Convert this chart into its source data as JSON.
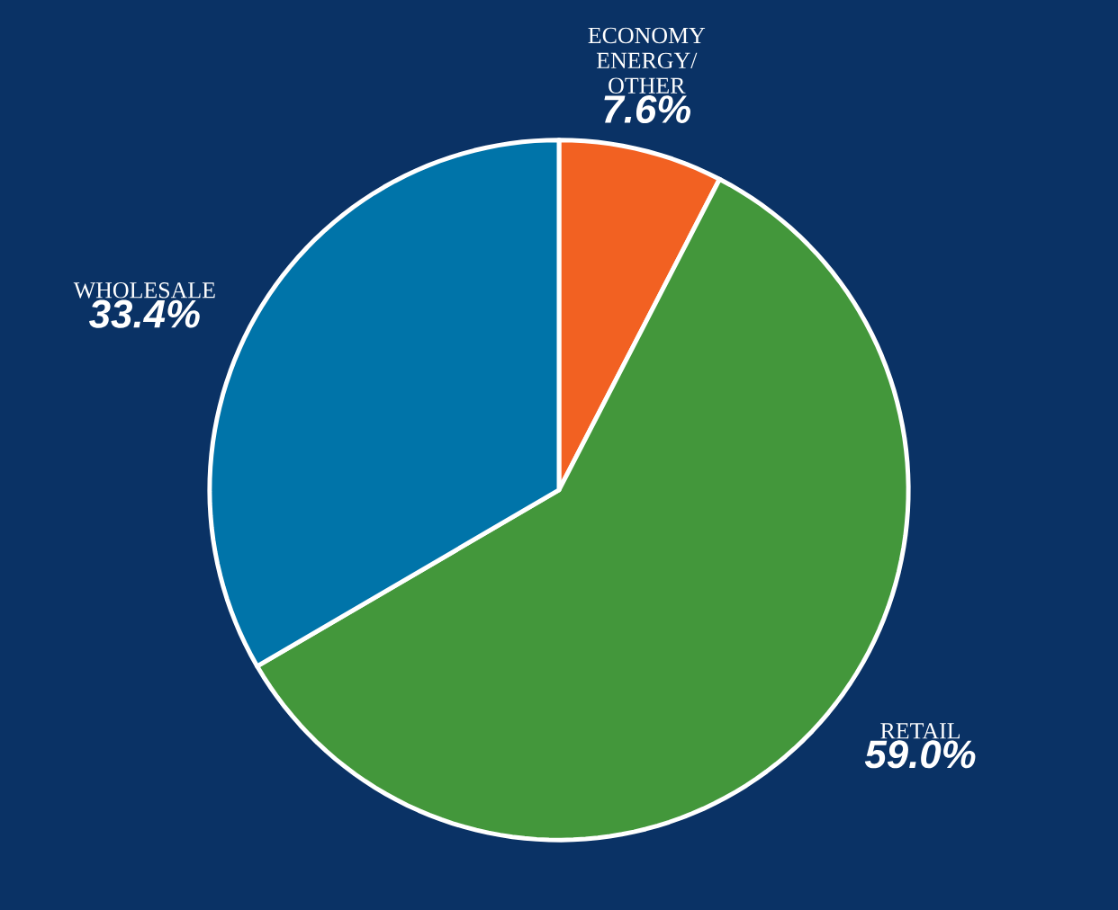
{
  "chart_data": {
    "type": "pie",
    "categories": [
      "ECONOMY ENERGY/ OTHER",
      "RETAIL",
      "WHOLESALE"
    ],
    "values": [
      7.6,
      59.0,
      33.4
    ],
    "colors": [
      "#f26122",
      "#43973b",
      "#0074a9"
    ],
    "value_labels": [
      "7.6%",
      "59.0%",
      "33.4%"
    ]
  }
}
